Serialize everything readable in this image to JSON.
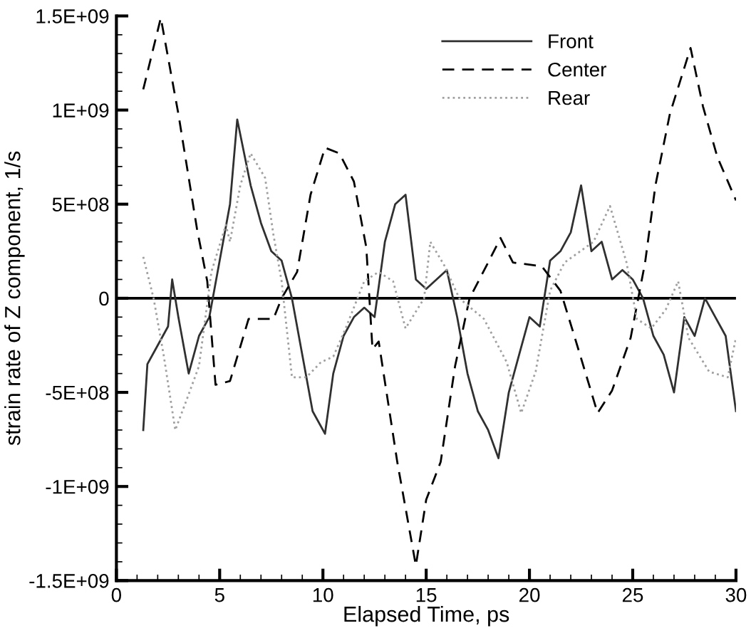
{
  "chart_data": {
    "type": "line",
    "xlabel": "Elapsed Time, ps",
    "ylabel": "strain rate of Z component, 1/s",
    "xlim": [
      0,
      30
    ],
    "xticks": [
      0,
      5,
      10,
      15,
      20,
      25,
      30
    ],
    "ylim": [
      -1500000000.0,
      1500000000.0
    ],
    "yticks": [
      {
        "value": -1500000000.0,
        "label": "-1.5E+09"
      },
      {
        "value": -1000000000.0,
        "label": "-1E+09"
      },
      {
        "value": -500000000.0,
        "label": "-5E+08"
      },
      {
        "value": 0,
        "label": "0"
      },
      {
        "value": 500000000.0,
        "label": "5E+08"
      },
      {
        "value": 1000000000.0,
        "label": "1E+09"
      },
      {
        "value": 1500000000.0,
        "label": "1.5E+09"
      }
    ],
    "grid": false,
    "legend": "top right",
    "ref_lines": [
      {
        "axis": "y",
        "value": 0,
        "color": "#000000",
        "line_style": "solid"
      }
    ],
    "series": [
      {
        "name": "Front",
        "color": "#303030",
        "line_style": "solid",
        "x": [
          1.3,
          1.5,
          2,
          2.5,
          2.7,
          3,
          3.5,
          4,
          4.5,
          5,
          5.5,
          5.85,
          6.5,
          7,
          7.5,
          8,
          8.5,
          9,
          9.5,
          10.1,
          10.5,
          11,
          11.5,
          12,
          12.5,
          13,
          13.5,
          14,
          14.5,
          15,
          15.5,
          16,
          16.5,
          17,
          17.5,
          18,
          18.5,
          19,
          19.5,
          20,
          20.5,
          21,
          21.5,
          22,
          22.5,
          23,
          23.5,
          24,
          24.5,
          25,
          25.5,
          26,
          26.5,
          27,
          27.5,
          28,
          28.5,
          29,
          29.5,
          30
        ],
        "values": [
          -700000000.0,
          -350000000.0,
          -250000000.0,
          -150000000.0,
          100000000.0,
          -100000000.0,
          -400000000.0,
          -200000000.0,
          -100000000.0,
          200000000.0,
          500000000.0,
          950000000.0,
          600000000.0,
          400000000.0,
          250000000.0,
          200000000.0,
          0,
          -300000000.0,
          -600000000.0,
          -720000000.0,
          -400000000.0,
          -200000000.0,
          -100000000.0,
          -50000000.0,
          -100000000.0,
          300000000.0,
          500000000.0,
          550000000.0,
          100000000.0,
          50000000.0,
          100000000.0,
          150000000.0,
          -100000000.0,
          -400000000.0,
          -600000000.0,
          -700000000.0,
          -850000000.0,
          -500000000.0,
          -300000000.0,
          -100000000.0,
          -150000000.0,
          200000000.0,
          250000000.0,
          350000000.0,
          600000000.0,
          250000000.0,
          300000000.0,
          100000000.0,
          150000000.0,
          100000000.0,
          0,
          -200000000.0,
          -300000000.0,
          -500000000.0,
          -100000000.0,
          -200000000.0,
          0,
          -100000000.0,
          -200000000.0,
          -600000000.0
        ]
      },
      {
        "name": "Center",
        "color": "#000000",
        "line_style": "dashed",
        "x": [
          1.3,
          2.15,
          3,
          3.9,
          4.4,
          4.8,
          5.5,
          6.4,
          7.6,
          8,
          8.75,
          9.4,
          10.1,
          10.8,
          11.5,
          12.1,
          12.4,
          12.7,
          13.6,
          14.5,
          15,
          15.7,
          16.4,
          17.1,
          18,
          18.6,
          19.2,
          20.6,
          21.5,
          22.2,
          23.3,
          24,
          24.9,
          25.6,
          26.1,
          26.8,
          27.8,
          28.4,
          29.1,
          30
        ],
        "values": [
          1110000000.0,
          1490000000.0,
          980000000.0,
          370000000.0,
          90000000.0,
          -460000000.0,
          -440000000.0,
          -110000000.0,
          -110000000.0,
          0,
          140000000.0,
          550000000.0,
          800000000.0,
          770000000.0,
          620000000.0,
          270000000.0,
          -270000000.0,
          -230000000.0,
          -870000000.0,
          -1420000000.0,
          -1070000000.0,
          -870000000.0,
          -360000000.0,
          0,
          190000000.0,
          320000000.0,
          190000000.0,
          170000000.0,
          40000000.0,
          -210000000.0,
          -610000000.0,
          -490000000.0,
          -210000000.0,
          190000000.0,
          600000000.0,
          980000000.0,
          1330000000.0,
          1020000000.0,
          750000000.0,
          520000000.0
        ]
      },
      {
        "name": "Rear",
        "color": "#a0a0a0",
        "line_style": "dotted",
        "x": [
          1.3,
          1.8,
          2.3,
          2.85,
          3.4,
          4,
          4.6,
          5.3,
          5.5,
          6,
          6.5,
          7.2,
          7.6,
          8,
          8.5,
          9.2,
          9.9,
          10.5,
          11.1,
          12,
          12.7,
          13.4,
          14,
          14.9,
          15.2,
          15.9,
          16.6,
          17.8,
          18.9,
          19.6,
          20.3,
          21,
          21.7,
          23.1,
          23.9,
          24.7,
          25.2,
          25.9,
          26.6,
          27.2,
          27.7,
          28.7,
          29.6,
          30
        ],
        "values": [
          220000000.0,
          0,
          -310000000.0,
          -700000000.0,
          -540000000.0,
          -360000000.0,
          140000000.0,
          390000000.0,
          300000000.0,
          600000000.0,
          770000000.0,
          640000000.0,
          340000000.0,
          90000000.0,
          -420000000.0,
          -420000000.0,
          -340000000.0,
          -310000000.0,
          -160000000.0,
          90000000.0,
          140000000.0,
          90000000.0,
          -160000000.0,
          0,
          300000000.0,
          170000000.0,
          0,
          -110000000.0,
          -340000000.0,
          -610000000.0,
          -390000000.0,
          40000000.0,
          190000000.0,
          300000000.0,
          490000000.0,
          190000000.0,
          -110000000.0,
          -160000000.0,
          -60000000.0,
          90000000.0,
          -210000000.0,
          -390000000.0,
          -420000000.0,
          -210000000.0
        ]
      }
    ]
  }
}
